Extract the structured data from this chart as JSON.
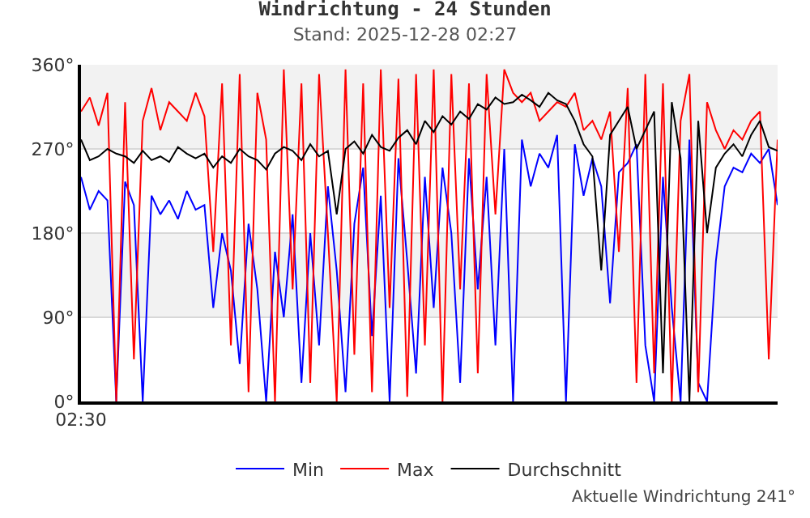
{
  "chart_data": {
    "type": "line",
    "title": "Windrichtung - 24 Stunden",
    "subtitle": "Stand: 2025-12-28 02:27",
    "annotations": [
      "Aktuelle Windrichtung 241°"
    ],
    "categories": [
      "02:30",
      null,
      null,
      null,
      null,
      null,
      null,
      null,
      null,
      null,
      null,
      null,
      null,
      null,
      null,
      null,
      null,
      null,
      null,
      null,
      null,
      null,
      null,
      null,
      null,
      null,
      null,
      null,
      null,
      null,
      null,
      null,
      null,
      null,
      null,
      null,
      null,
      null,
      null,
      null,
      null,
      null,
      null,
      null,
      null,
      null,
      null,
      null,
      null,
      null,
      null,
      null,
      null,
      null,
      null,
      null,
      null,
      null,
      null,
      null,
      null,
      null,
      null,
      null,
      null,
      null,
      null,
      null,
      null,
      null,
      null,
      null,
      null,
      null,
      null,
      null,
      null,
      null,
      null,
      null
    ],
    "series": [
      {
        "name": "Min",
        "color": "#0000ff",
        "values": [
          240,
          205,
          225,
          215,
          0,
          235,
          210,
          0,
          220,
          200,
          215,
          195,
          225,
          205,
          210,
          100,
          180,
          140,
          40,
          190,
          120,
          0,
          160,
          90,
          200,
          20,
          180,
          60,
          230,
          140,
          10,
          190,
          250,
          70,
          220,
          0,
          260,
          150,
          30,
          240,
          100,
          250,
          180,
          20,
          260,
          120,
          240,
          60,
          270,
          0,
          280,
          230,
          265,
          250,
          285,
          0,
          275,
          220,
          260,
          230,
          105,
          245,
          255,
          275,
          60,
          0,
          240,
          100,
          0,
          280,
          20,
          0,
          150,
          230,
          250,
          245,
          265,
          255,
          270,
          210
        ]
      },
      {
        "name": "Max",
        "color": "#ff0000",
        "values": [
          310,
          325,
          295,
          330,
          0,
          320,
          45,
          300,
          335,
          290,
          320,
          310,
          300,
          330,
          305,
          160,
          340,
          60,
          350,
          10,
          330,
          280,
          0,
          355,
          120,
          340,
          20,
          350,
          180,
          0,
          355,
          50,
          340,
          10,
          355,
          100,
          345,
          5,
          350,
          60,
          355,
          0,
          350,
          120,
          340,
          30,
          350,
          200,
          355,
          330,
          320,
          330,
          300,
          310,
          320,
          315,
          330,
          290,
          300,
          280,
          310,
          160,
          335,
          20,
          350,
          30,
          340,
          0,
          300,
          350,
          10,
          320,
          290,
          270,
          290,
          280,
          300,
          310,
          45,
          280
        ]
      },
      {
        "name": "Durchschnitt",
        "color": "#000000",
        "values": [
          280,
          258,
          262,
          270,
          265,
          262,
          255,
          268,
          258,
          262,
          256,
          272,
          265,
          260,
          265,
          250,
          262,
          255,
          270,
          262,
          258,
          248,
          265,
          272,
          268,
          258,
          275,
          262,
          268,
          200,
          270,
          278,
          265,
          285,
          272,
          268,
          282,
          290,
          275,
          300,
          288,
          305,
          296,
          310,
          302,
          318,
          312,
          325,
          318,
          320,
          328,
          322,
          315,
          330,
          322,
          318,
          300,
          275,
          262,
          140,
          285,
          300,
          315,
          270,
          290,
          310,
          30,
          320,
          260,
          0,
          300,
          180,
          250,
          265,
          275,
          262,
          285,
          300,
          272,
          268
        ]
      }
    ],
    "ylim": [
      0,
      360
    ],
    "yticks": [
      {
        "value": 0,
        "label": "0°"
      },
      {
        "value": 90,
        "label": "90°"
      },
      {
        "value": 180,
        "label": "180°"
      },
      {
        "value": 270,
        "label": "270°"
      },
      {
        "value": 360,
        "label": "360°"
      }
    ],
    "bands": [
      {
        "axis": "y",
        "from": 90,
        "to": 180,
        "color": "#f2f2f2"
      },
      {
        "axis": "y",
        "from": 270,
        "to": 360,
        "color": "#f2f2f2"
      }
    ],
    "grid": "y",
    "legend": "bottom",
    "marker": "none",
    "line_style": "solid"
  }
}
